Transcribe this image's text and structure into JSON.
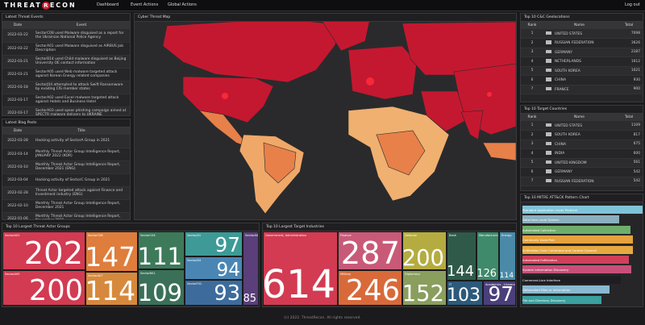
{
  "nav": {
    "logo_left": "THREAT",
    "logo_mark": "R",
    "logo_right": "ECON",
    "links": [
      "Dashboard",
      "Event Actions",
      "Global Actions"
    ],
    "logout": "Log out"
  },
  "threat_events": {
    "title": "Latest Threat Events",
    "columns": [
      "Date",
      "Event"
    ],
    "rows": [
      [
        "2022-03-22",
        "SectorC08 used Malware disguised as a report for the Ukrainian National Police Agency"
      ],
      [
        "2022-03-22",
        "SectorA01 used Malware disguised as AIRBUS Job Description"
      ],
      [
        "2022-03-21",
        "SectorB14 used Child malware disguised as Beijing University OE contact information"
      ],
      [
        "2022-03-21",
        "SectorA05 used Web malware targeted attack against Korean Energy related companies"
      ],
      [
        "2022-03-18",
        "SectorJ04 attempted to attack Swift Ransomware by evading CIS member states"
      ],
      [
        "2022-03-17",
        "SectorA02 used Excel malware targeted attack against Hotels and Business Hotel"
      ],
      [
        "2022-03-17",
        "SectorA03 used spear phishing campaign aimed at SPECTR malware delivery to UKRAINE"
      ]
    ]
  },
  "blog_posts": {
    "title": "Latest Blog Posts",
    "columns": [
      "Date",
      "Title"
    ],
    "rows": [
      [
        "2022-03-28",
        "Hacking activity of SectorA Group in 2021"
      ],
      [
        "2022-03-14",
        "Monthly Threat Actor Group Intelligence Report, JANUARY 2022 (KOR)"
      ],
      [
        "2022-03-10",
        "Monthly Threat Actor Group Intelligence Report, December 2021 (ENG)"
      ],
      [
        "2022-03-04",
        "Hacking activity of SectorC Group in 2021"
      ],
      [
        "2022-02-28",
        "Threat Actor targeted attack against Finance and Investment industry (ENG)"
      ],
      [
        "2022-02-10",
        "Monthly Threat Actor Group Intelligence Report, December 2021"
      ],
      [
        "2022-01-06",
        "Monthly Threat Actor Group Intelligence Report, November 2021"
      ]
    ]
  },
  "map": {
    "title": "Cyber Threat Map"
  },
  "cc_geolocations": {
    "title": "Top 10 C&C Geolocations",
    "columns": [
      "Rank",
      "Name",
      "Total"
    ],
    "rows": [
      [
        1,
        "UNITED STATES",
        7698
      ],
      [
        2,
        "RUSSIAN FEDERATION",
        3626
      ],
      [
        3,
        "GERMANY",
        2187
      ],
      [
        4,
        "NETHERLANDS",
        1612
      ],
      [
        5,
        "SOUTH KOREA",
        1021
      ],
      [
        6,
        "CHINA",
        930
      ],
      [
        7,
        "FRANCE",
        900
      ]
    ]
  },
  "target_countries": {
    "title": "Top 10 Target Countries",
    "columns": [
      "Rank",
      "Name",
      "Total"
    ],
    "rows": [
      [
        1,
        "UNITED STATES",
        1109
      ],
      [
        2,
        "SOUTH KOREA",
        817
      ],
      [
        3,
        "CHINA",
        675
      ],
      [
        4,
        "INDIA",
        600
      ],
      [
        5,
        "UNITED KINGDOM",
        561
      ],
      [
        6,
        "GERMANY",
        542
      ],
      [
        7,
        "RUSSIAN FEDERATION",
        542
      ]
    ]
  },
  "mitre": {
    "title": "Top 10 MITRE ATT&CK Pattern Chart",
    "categories": [
      "Standard Application Layer Protocol",
      "Data from Local System",
      "Automated Collection",
      "Commonly Used Port",
      "Exfiltration Over Command and Control Channel",
      "Automated Exfiltration",
      "System Information Discovery",
      "Command-Line Interface",
      "Obfuscated Files or Information",
      "File and Directory Discovery"
    ],
    "values": [
      149,
      120,
      134,
      137,
      137,
      132,
      135,
      122,
      108,
      98
    ],
    "colors": [
      "#7ec4d8",
      "#8ab0c0",
      "#6fae6a",
      "#e6a23c",
      "#e8a840",
      "#d0405a",
      "#c85078",
      "#1e1e22",
      "#8ab8d0",
      "#3aa0a0"
    ]
  },
  "actor_groups": {
    "title": "Top 10 Largest Threat Actor Groups",
    "names": [
      "SectorA01",
      "SectorA05",
      "SectorC08",
      "SectorA07",
      "SectorC04",
      "SectorB01",
      "SectorJ01",
      "SectorJ04",
      "SectorF01",
      "SectorA02"
    ],
    "values": [
      202,
      200,
      147,
      114,
      111,
      109,
      97,
      94,
      93,
      85
    ],
    "colors": [
      "#d23b52",
      "#d23b52",
      "#de7d3c",
      "#d6893c",
      "#3d7a5a",
      "#3a7058",
      "#3d9a96",
      "#4a86b4",
      "#3d6c9c",
      "#5a3f7a"
    ]
  },
  "industries": {
    "title": "Top 10 Largest Target Industries",
    "names": [
      "Government, Administration",
      "Finance",
      "Military",
      "Defense",
      "Diplomacy",
      "Bank",
      "Manufacturing",
      "Energy",
      "IT",
      "Academics - University"
    ],
    "values": [
      614,
      287,
      246,
      200,
      152,
      144,
      126,
      114,
      103,
      97
    ],
    "colors": [
      "#d23b52",
      "#c85a78",
      "#d86a3a",
      "#b4ac40",
      "#8a9e5e",
      "#2f5a4a",
      "#3f8a6a",
      "#4a8aa8",
      "#2d5a7a",
      "#4a3f7a"
    ]
  },
  "footer": "(c) 2022. ThreatRecon. All rights reserved."
}
